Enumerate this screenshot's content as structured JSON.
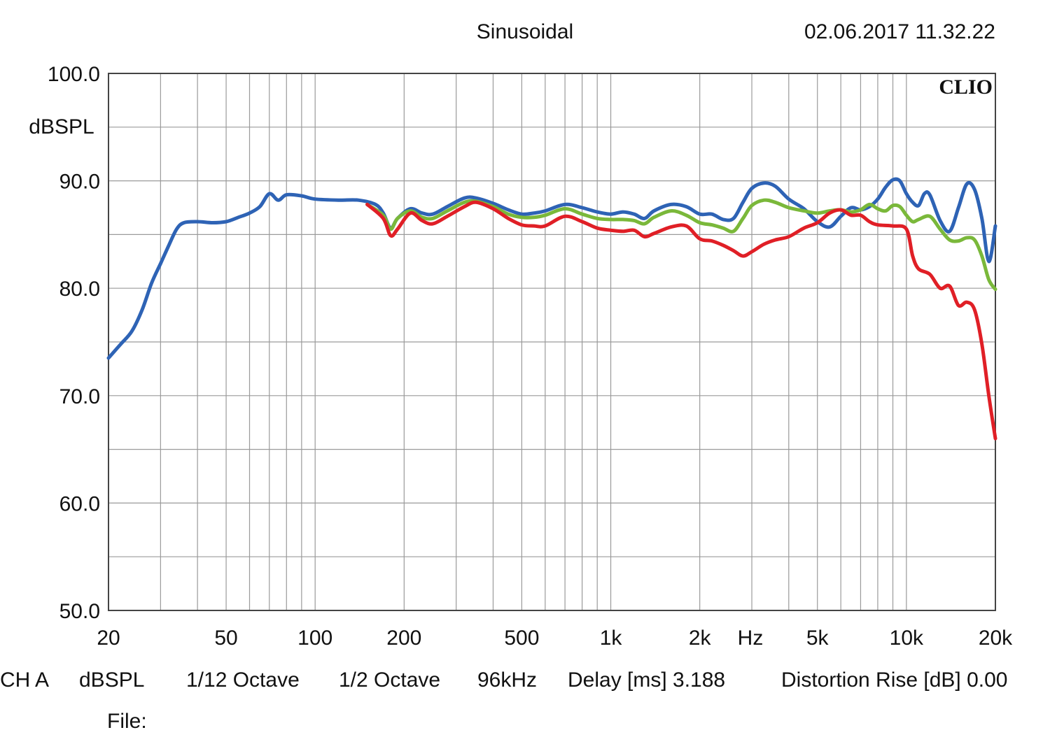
{
  "header": {
    "mode": "Sinusoidal",
    "timestamp": "02.06.2017 11.32.22"
  },
  "brand": "CLIO",
  "footer": {
    "fields": [
      {
        "key": "channel",
        "text": "CH A"
      },
      {
        "key": "unit",
        "text": "dBSPL"
      },
      {
        "key": "smoothing",
        "text": "1/12 Octave"
      },
      {
        "key": "resolution",
        "text": "1/2 Octave"
      },
      {
        "key": "sample_rate",
        "text": "96kHz"
      },
      {
        "key": "delay",
        "text": "Delay [ms] 3.188"
      },
      {
        "key": "distortion",
        "text": "Distortion Rise [dB] 0.00"
      }
    ],
    "file_label": "File:"
  },
  "chart_data": {
    "type": "line",
    "title": "",
    "xlabel": "Hz",
    "ylabel": "dBSPL",
    "x_scale": "log",
    "xlim": [
      20,
      20000
    ],
    "ylim": [
      50,
      100
    ],
    "grid": true,
    "x_ticks": [
      {
        "value": 20,
        "label": "20"
      },
      {
        "value": 50,
        "label": "50"
      },
      {
        "value": 100,
        "label": "100"
      },
      {
        "value": 200,
        "label": "200"
      },
      {
        "value": 500,
        "label": "500"
      },
      {
        "value": 1000,
        "label": "1k"
      },
      {
        "value": 2000,
        "label": "2k"
      },
      {
        "value": 5000,
        "label": "5k"
      },
      {
        "value": 10000,
        "label": "10k"
      },
      {
        "value": 20000,
        "label": "20k"
      }
    ],
    "y_ticks": [
      {
        "value": 100,
        "label": "100.0"
      },
      {
        "value": 90,
        "label": "90.0"
      },
      {
        "value": 80,
        "label": "80.0"
      },
      {
        "value": 70,
        "label": "70.0"
      },
      {
        "value": 60,
        "label": "60.0"
      },
      {
        "value": 50,
        "label": "50.0"
      }
    ],
    "series": [
      {
        "color": "#2e63b5",
        "points": [
          [
            20,
            73.5
          ],
          [
            22,
            74.8
          ],
          [
            24,
            76
          ],
          [
            26,
            78
          ],
          [
            28,
            80.5
          ],
          [
            30,
            82.3
          ],
          [
            32,
            84
          ],
          [
            34,
            85.5
          ],
          [
            36,
            86.1
          ],
          [
            40,
            86.2
          ],
          [
            45,
            86.1
          ],
          [
            50,
            86.2
          ],
          [
            55,
            86.6
          ],
          [
            60,
            87
          ],
          [
            65,
            87.6
          ],
          [
            70,
            88.8
          ],
          [
            75,
            88.2
          ],
          [
            80,
            88.7
          ],
          [
            90,
            88.6
          ],
          [
            100,
            88.3
          ],
          [
            120,
            88.2
          ],
          [
            140,
            88.2
          ],
          [
            160,
            87.8
          ],
          [
            170,
            87
          ],
          [
            180,
            85.6
          ],
          [
            190,
            86.5
          ],
          [
            210,
            87.4
          ],
          [
            230,
            87
          ],
          [
            250,
            86.9
          ],
          [
            280,
            87.6
          ],
          [
            320,
            88.4
          ],
          [
            350,
            88.4
          ],
          [
            400,
            87.9
          ],
          [
            450,
            87.3
          ],
          [
            500,
            86.9
          ],
          [
            550,
            87
          ],
          [
            600,
            87.2
          ],
          [
            700,
            87.8
          ],
          [
            800,
            87.5
          ],
          [
            900,
            87.1
          ],
          [
            1000,
            86.9
          ],
          [
            1100,
            87.1
          ],
          [
            1200,
            86.9
          ],
          [
            1300,
            86.5
          ],
          [
            1400,
            87.2
          ],
          [
            1600,
            87.8
          ],
          [
            1800,
            87.6
          ],
          [
            2000,
            86.9
          ],
          [
            2200,
            86.9
          ],
          [
            2400,
            86.4
          ],
          [
            2600,
            86.5
          ],
          [
            2800,
            88
          ],
          [
            3000,
            89.3
          ],
          [
            3300,
            89.8
          ],
          [
            3600,
            89.5
          ],
          [
            4000,
            88.3
          ],
          [
            4500,
            87.4
          ],
          [
            5000,
            86.2
          ],
          [
            5500,
            85.7
          ],
          [
            6000,
            86.7
          ],
          [
            6500,
            87.5
          ],
          [
            7000,
            87.3
          ],
          [
            7500,
            87.6
          ],
          [
            8000,
            88.3
          ],
          [
            8500,
            89.4
          ],
          [
            9000,
            90.1
          ],
          [
            9500,
            90
          ],
          [
            10000,
            88.8
          ],
          [
            10500,
            88
          ],
          [
            11000,
            87.7
          ],
          [
            11500,
            88.8
          ],
          [
            12000,
            88.7
          ],
          [
            13000,
            86.3
          ],
          [
            14000,
            85.3
          ],
          [
            15000,
            87.5
          ],
          [
            16000,
            89.7
          ],
          [
            17000,
            89.2
          ],
          [
            18000,
            86.5
          ],
          [
            19000,
            82.5
          ],
          [
            20000,
            85.8
          ]
        ]
      },
      {
        "color": "#7ab83a",
        "points": [
          [
            150,
            87.8
          ],
          [
            170,
            86.8
          ],
          [
            180,
            85.5
          ],
          [
            190,
            86.5
          ],
          [
            210,
            87.2
          ],
          [
            230,
            86.6
          ],
          [
            250,
            86.5
          ],
          [
            280,
            87.2
          ],
          [
            320,
            88
          ],
          [
            350,
            88.1
          ],
          [
            400,
            87.6
          ],
          [
            450,
            86.9
          ],
          [
            500,
            86.6
          ],
          [
            550,
            86.6
          ],
          [
            600,
            86.8
          ],
          [
            700,
            87.4
          ],
          [
            800,
            86.9
          ],
          [
            900,
            86.5
          ],
          [
            1000,
            86.4
          ],
          [
            1100,
            86.4
          ],
          [
            1200,
            86.3
          ],
          [
            1300,
            86
          ],
          [
            1400,
            86.6
          ],
          [
            1600,
            87.2
          ],
          [
            1800,
            86.8
          ],
          [
            2000,
            86.1
          ],
          [
            2200,
            85.9
          ],
          [
            2400,
            85.6
          ],
          [
            2600,
            85.3
          ],
          [
            2800,
            86.5
          ],
          [
            3000,
            87.7
          ],
          [
            3300,
            88.2
          ],
          [
            3600,
            88
          ],
          [
            4000,
            87.5
          ],
          [
            4500,
            87.2
          ],
          [
            5000,
            87
          ],
          [
            5500,
            87.2
          ],
          [
            6000,
            87.3
          ],
          [
            6500,
            87.1
          ],
          [
            7000,
            87.3
          ],
          [
            7500,
            87.8
          ],
          [
            8000,
            87.4
          ],
          [
            8500,
            87.2
          ],
          [
            9000,
            87.7
          ],
          [
            9500,
            87.6
          ],
          [
            10000,
            86.8
          ],
          [
            10500,
            86.2
          ],
          [
            11000,
            86.4
          ],
          [
            12000,
            86.7
          ],
          [
            13000,
            85.5
          ],
          [
            14000,
            84.5
          ],
          [
            15000,
            84.4
          ],
          [
            16000,
            84.7
          ],
          [
            17000,
            84.5
          ],
          [
            18000,
            83
          ],
          [
            19000,
            80.8
          ],
          [
            20000,
            79.9
          ]
        ]
      },
      {
        "color": "#e01f26",
        "points": [
          [
            150,
            87.8
          ],
          [
            170,
            86.5
          ],
          [
            180,
            84.9
          ],
          [
            190,
            85.5
          ],
          [
            210,
            87
          ],
          [
            230,
            86.3
          ],
          [
            250,
            86
          ],
          [
            280,
            86.7
          ],
          [
            320,
            87.6
          ],
          [
            350,
            88
          ],
          [
            400,
            87.4
          ],
          [
            450,
            86.5
          ],
          [
            500,
            85.9
          ],
          [
            550,
            85.8
          ],
          [
            600,
            85.8
          ],
          [
            700,
            86.7
          ],
          [
            800,
            86.2
          ],
          [
            900,
            85.6
          ],
          [
            1000,
            85.4
          ],
          [
            1100,
            85.3
          ],
          [
            1200,
            85.4
          ],
          [
            1300,
            84.8
          ],
          [
            1400,
            85.1
          ],
          [
            1600,
            85.7
          ],
          [
            1800,
            85.8
          ],
          [
            2000,
            84.6
          ],
          [
            2200,
            84.4
          ],
          [
            2400,
            84
          ],
          [
            2600,
            83.5
          ],
          [
            2800,
            83
          ],
          [
            3000,
            83.4
          ],
          [
            3300,
            84.1
          ],
          [
            3600,
            84.5
          ],
          [
            4000,
            84.8
          ],
          [
            4500,
            85.6
          ],
          [
            5000,
            86.1
          ],
          [
            5500,
            87
          ],
          [
            6000,
            87.3
          ],
          [
            6500,
            86.8
          ],
          [
            7000,
            86.8
          ],
          [
            7500,
            86.2
          ],
          [
            8000,
            85.9
          ],
          [
            9000,
            85.8
          ],
          [
            10000,
            85.5
          ],
          [
            10500,
            83
          ],
          [
            11000,
            81.8
          ],
          [
            12000,
            81.3
          ],
          [
            13000,
            80
          ],
          [
            14000,
            80.2
          ],
          [
            15000,
            78.4
          ],
          [
            16000,
            78.7
          ],
          [
            17000,
            78
          ],
          [
            18000,
            74.8
          ],
          [
            19000,
            70
          ],
          [
            20000,
            66
          ]
        ]
      }
    ]
  }
}
